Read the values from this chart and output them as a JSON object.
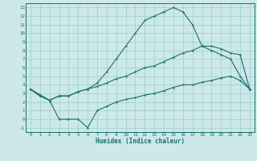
{
  "background_color": "#cce8e8",
  "grid_color": "#a0cccc",
  "line_color": "#1a7070",
  "xlabel": "Humidex (Indice chaleur)",
  "xlim": [
    -0.5,
    23.5
  ],
  "ylim": [
    -1.5,
    13.5
  ],
  "xticks": [
    0,
    1,
    2,
    3,
    4,
    5,
    6,
    7,
    8,
    9,
    10,
    11,
    12,
    13,
    14,
    15,
    16,
    17,
    18,
    19,
    20,
    21,
    22,
    23
  ],
  "yticks": [
    -1,
    0,
    1,
    2,
    3,
    4,
    5,
    6,
    7,
    8,
    9,
    10,
    11,
    12,
    13
  ],
  "line1_x": [
    0,
    1,
    2,
    3,
    4,
    5,
    6,
    7,
    8,
    9,
    10,
    11,
    12,
    13,
    14,
    15,
    16,
    17,
    18,
    19,
    20,
    21,
    22,
    23
  ],
  "line1_y": [
    3.5,
    2.7,
    2.2,
    2.7,
    2.7,
    3.2,
    3.5,
    4.2,
    5.5,
    7.0,
    8.5,
    10.0,
    11.5,
    12.0,
    12.5,
    13.0,
    12.5,
    11.0,
    8.5,
    8.0,
    7.5,
    7.0,
    5.0,
    3.5
  ],
  "line2_x": [
    0,
    1,
    2,
    3,
    4,
    5,
    6,
    7,
    8,
    9,
    10,
    11,
    12,
    13,
    14,
    15,
    16,
    17,
    18,
    19,
    20,
    21,
    22,
    23
  ],
  "line2_y": [
    3.5,
    2.7,
    2.2,
    2.7,
    2.7,
    3.2,
    3.5,
    3.8,
    4.2,
    4.7,
    5.0,
    5.5,
    6.0,
    6.2,
    6.7,
    7.2,
    7.7,
    8.0,
    8.5,
    8.5,
    8.2,
    7.7,
    7.5,
    3.5
  ],
  "line3_x": [
    0,
    2,
    3,
    4,
    5,
    6,
    7,
    8,
    9,
    10,
    11,
    12,
    13,
    14,
    15,
    16,
    17,
    18,
    19,
    20,
    21,
    22,
    23
  ],
  "line3_y": [
    3.5,
    2.2,
    0.0,
    0.0,
    0.0,
    -1.0,
    1.0,
    1.5,
    2.0,
    2.3,
    2.5,
    2.8,
    3.0,
    3.3,
    3.7,
    4.0,
    4.0,
    4.3,
    4.5,
    4.8,
    5.0,
    4.5,
    3.5
  ]
}
